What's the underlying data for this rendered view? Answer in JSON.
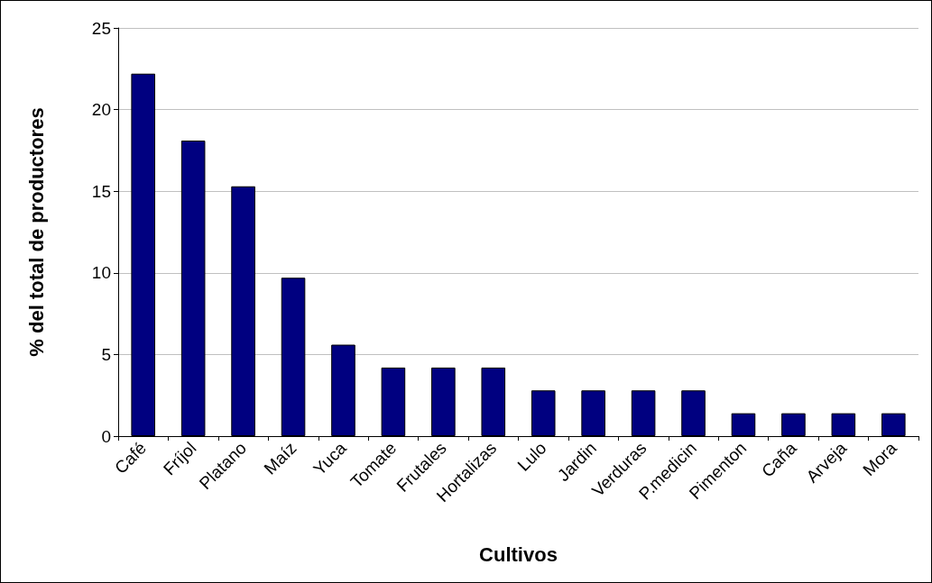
{
  "chart_data": {
    "type": "bar",
    "xlabel": "Cultivos",
    "ylabel": "% del total de productores",
    "categories": [
      "Café",
      "Fríjol",
      "Platano",
      "Maíz",
      "Yuca",
      "Tomate",
      "Frutales",
      "Hortalizas",
      "Lulo",
      "Jardin",
      "Verduras",
      "P.medicin",
      "Pimenton",
      "Caña",
      "Arveja",
      "Mora"
    ],
    "values": [
      22.2,
      18.1,
      15.3,
      9.7,
      5.6,
      4.2,
      4.2,
      4.2,
      2.8,
      2.8,
      2.8,
      2.8,
      1.4,
      1.4,
      1.4,
      1.4
    ],
    "color": "#000080",
    "ylim": [
      0,
      25
    ],
    "yticks": [
      0,
      5,
      10,
      15,
      20,
      25
    ],
    "grid": "y"
  }
}
